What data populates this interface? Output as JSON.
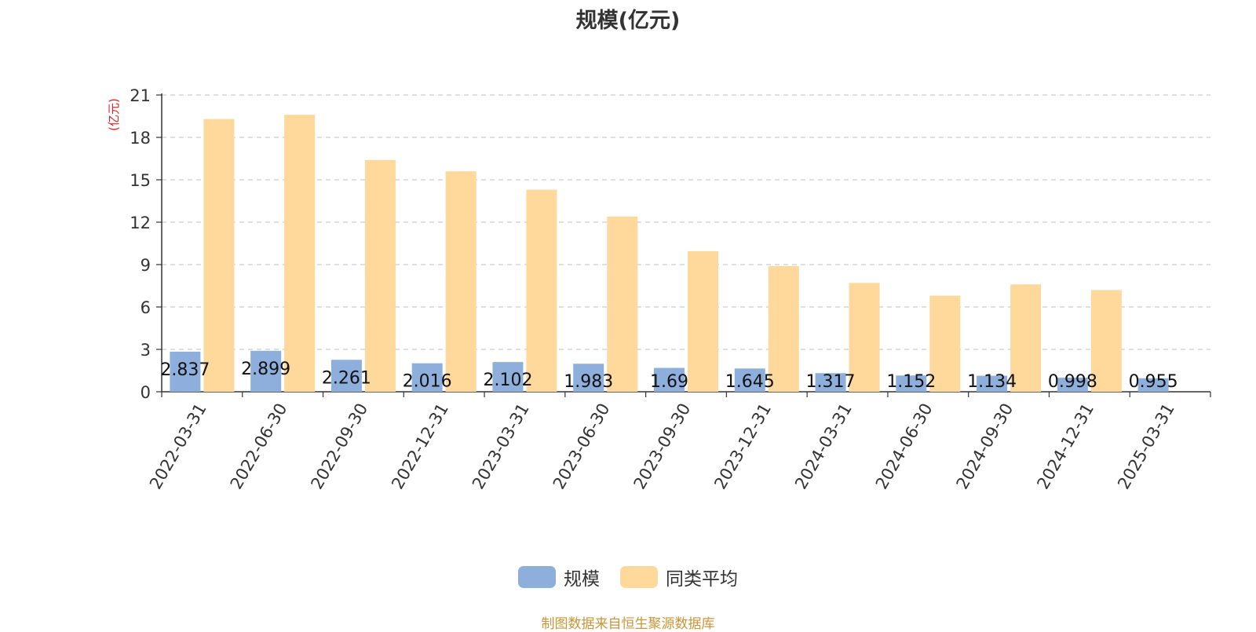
{
  "chart_data": {
    "type": "bar",
    "title": "规模(亿元)",
    "ylabel": "(亿元)",
    "xlabel": "",
    "ylim": [
      0,
      21
    ],
    "yticks": [
      0,
      3,
      6,
      9,
      12,
      15,
      18,
      21
    ],
    "grid": true,
    "legend_position": "bottom-center",
    "categories": [
      "2022-03-31",
      "2022-06-30",
      "2022-09-30",
      "2022-12-31",
      "2023-03-31",
      "2023-06-30",
      "2023-09-30",
      "2023-12-31",
      "2024-03-31",
      "2024-06-30",
      "2024-09-30",
      "2024-12-31",
      "2025-03-31"
    ],
    "series": [
      {
        "name": "规模",
        "color": "#8eafdc",
        "values": [
          2.837,
          2.899,
          2.261,
          2.016,
          2.102,
          1.983,
          1.69,
          1.645,
          1.317,
          1.152,
          1.134,
          0.998,
          0.955
        ],
        "labels": [
          "2.837",
          "2.899",
          "2.261",
          "2.016",
          "2.102",
          "1.983",
          "1.69",
          "1.645",
          "1.317",
          "1.152",
          "1.134",
          "0.998",
          "0.955"
        ]
      },
      {
        "name": "同类平均",
        "color": "#fed99b",
        "values": [
          19.3,
          19.6,
          16.4,
          15.6,
          14.3,
          12.4,
          9.95,
          8.9,
          7.7,
          6.8,
          7.6,
          7.2,
          null
        ]
      }
    ]
  },
  "footer": {
    "source": "制图数据来自恒生聚源数据库"
  }
}
